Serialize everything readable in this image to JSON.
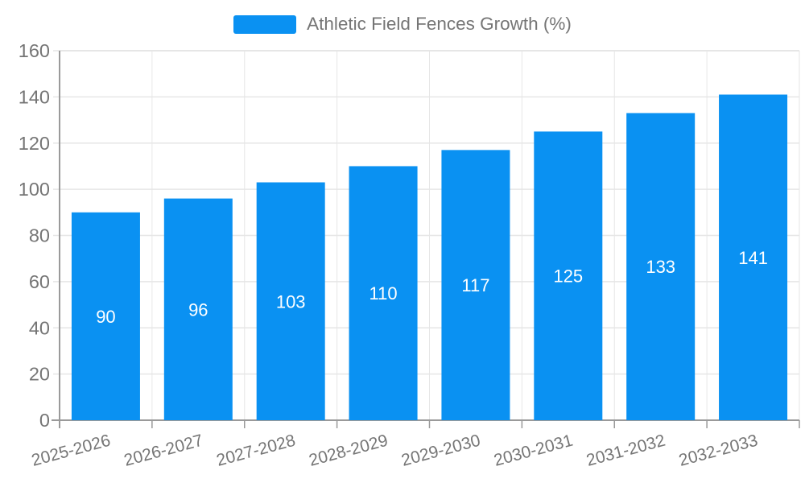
{
  "chart_data": {
    "type": "bar",
    "title": "Athletic Field Fences Growth (%)",
    "legend": {
      "label": "Athletic Field Fences Growth (%)",
      "position": "top-center"
    },
    "categories": [
      "2025-2026",
      "2026-2027",
      "2027-2028",
      "2028-2029",
      "2029-2030",
      "2030-2031",
      "2031-2032",
      "2032-2033"
    ],
    "values": [
      90,
      96,
      103,
      110,
      117,
      125,
      133,
      141
    ],
    "xlabel": "",
    "ylabel": "",
    "ylim": [
      0,
      160
    ],
    "yticks": [
      0,
      20,
      40,
      60,
      80,
      100,
      120,
      140,
      160
    ],
    "grid": true,
    "value_labels_shown": true,
    "x_tick_label_rotation_deg": -15,
    "colors": {
      "bar": "#0A91F2",
      "value_label_text": "#FFFFFF",
      "axis_tick_text": "#757575",
      "legend_text": "#757575",
      "grid_line": "#E6E6E6",
      "axis_line": "#9A9A9A",
      "background": "#FFFFFF"
    }
  }
}
